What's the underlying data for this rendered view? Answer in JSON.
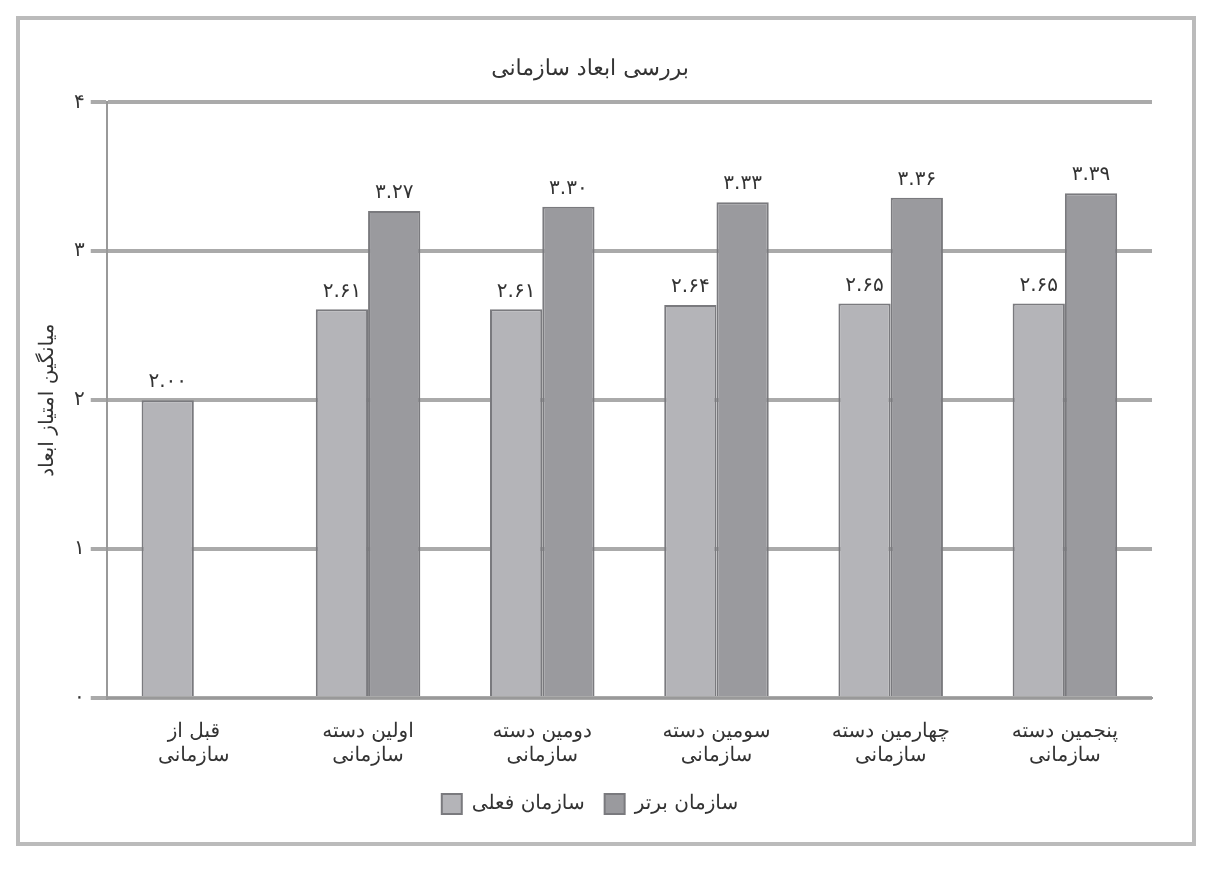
{
  "chart_data": {
    "type": "bar",
    "title": "بررسی ابعاد سازمانی",
    "ylabel": "میانگین امتیاز ابعاد",
    "categories": [
      "قبل از سازمانی",
      "اولین دسته سازمانی",
      "دومین دسته سازمانی",
      "سومین دسته سازمانی",
      "چهارمین دسته سازمانی",
      "پنجمین دسته سازمانی"
    ],
    "series": [
      {
        "name": "سازمان فعلی",
        "color": "#b4b4b8",
        "values": [
          2.0,
          2.61,
          2.61,
          2.64,
          2.65,
          2.65
        ],
        "value_labels": [
          "۲.۰۰",
          "۲.۶۱",
          "۲.۶۱",
          "۲.۶۴",
          "۲.۶۵",
          "۲.۶۵"
        ]
      },
      {
        "name": "سازمان برتر",
        "color": "#9a9a9e",
        "values": [
          null,
          3.27,
          3.3,
          3.33,
          3.36,
          3.39
        ],
        "value_labels": [
          null,
          "۳.۲۷",
          "۳.۳۰",
          "۳.۳۳",
          "۳.۳۶",
          "۳.۳۹"
        ]
      }
    ],
    "ylim": [
      0,
      4
    ],
    "yticks": [
      {
        "value": 0,
        "label": "۰"
      },
      {
        "value": 1,
        "label": "۱"
      },
      {
        "value": 2,
        "label": "۲"
      },
      {
        "value": 3,
        "label": "۳"
      },
      {
        "value": 4,
        "label": "۴"
      }
    ],
    "grid": "y",
    "legend": "bottom"
  }
}
